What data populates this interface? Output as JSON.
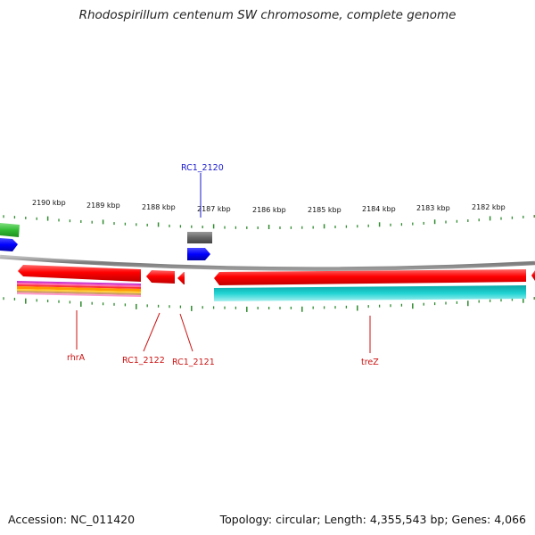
{
  "title": "Rhodospirillum centenum SW chromosome, complete genome",
  "footer": {
    "accession": "Accession: NC_011420",
    "summary": "Topology: circular; Length: 4,355,543 bp; Genes: 4,066"
  },
  "ruler": {
    "labels": [
      "2190 kbp",
      "2189 kbp",
      "2188 kbp",
      "2187 kbp",
      "2186 kbp",
      "2185 kbp",
      "2184 kbp",
      "2183 kbp",
      "2182 kbp"
    ]
  },
  "gene_labels": {
    "top": {
      "text": "RC1_2120",
      "color": "#1a1acc"
    },
    "bottom": [
      {
        "text": "rhrA",
        "color": "#cc1111"
      },
      {
        "text": "RC1_2122",
        "color": "#cc1111"
      },
      {
        "text": "RC1_2121",
        "color": "#cc1111"
      },
      {
        "text": "treZ",
        "color": "#cc1111"
      }
    ]
  },
  "colors": {
    "tick": "#2e8b2e",
    "backbone": "#808080",
    "gene_red": "#ee0000",
    "gene_blue": "#0000ff",
    "gene_cyan": "#20c0c0",
    "gene_green": "#33bb33",
    "gene_gray": "#555555"
  }
}
